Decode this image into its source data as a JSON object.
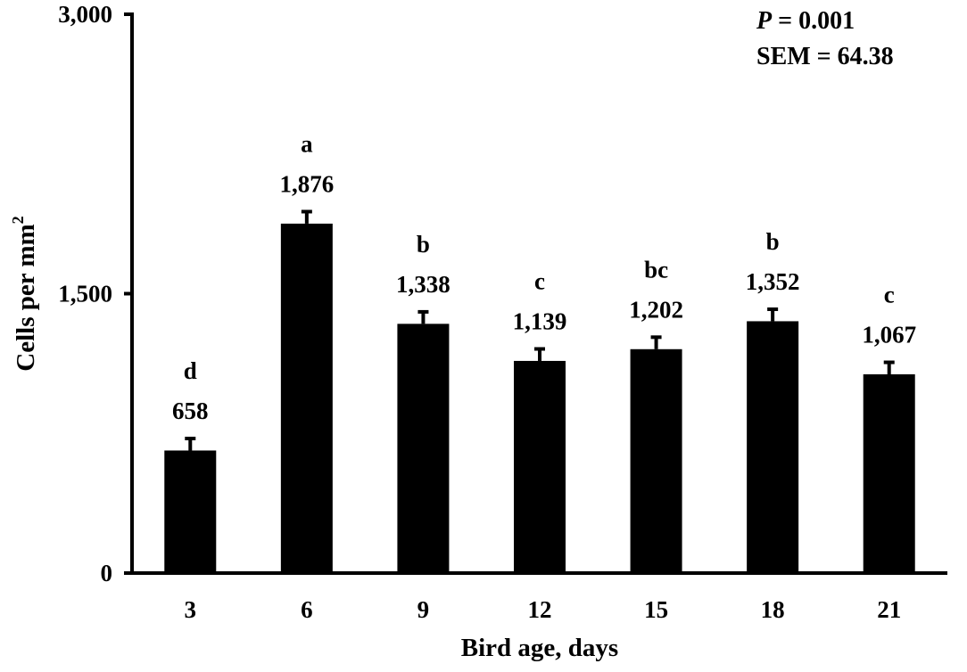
{
  "chart_data": {
    "type": "bar",
    "xlabel": "Bird age, days",
    "ylabel": "Cells per mm",
    "ylabel_superscript": "2",
    "ylim": [
      0,
      3000
    ],
    "yticks": [
      0,
      1500,
      3000
    ],
    "ytick_labels": [
      "0",
      "1,500",
      "3,000"
    ],
    "categories": [
      "3",
      "6",
      "9",
      "12",
      "15",
      "18",
      "21"
    ],
    "values": [
      658,
      1876,
      1338,
      1139,
      1202,
      1352,
      1067
    ],
    "value_labels": [
      "658",
      "1,876",
      "1,338",
      "1,139",
      "1,202",
      "1,352",
      "1,067"
    ],
    "letters": [
      "d",
      "a",
      "b",
      "c",
      "bc",
      "b",
      "c"
    ],
    "error": 64.38,
    "bar_color": "#000000",
    "grid": false,
    "legend": "none",
    "annotations": {
      "p_symbol": "P",
      "p_value": " = 0.001",
      "sem": "SEM = 64.38"
    }
  }
}
